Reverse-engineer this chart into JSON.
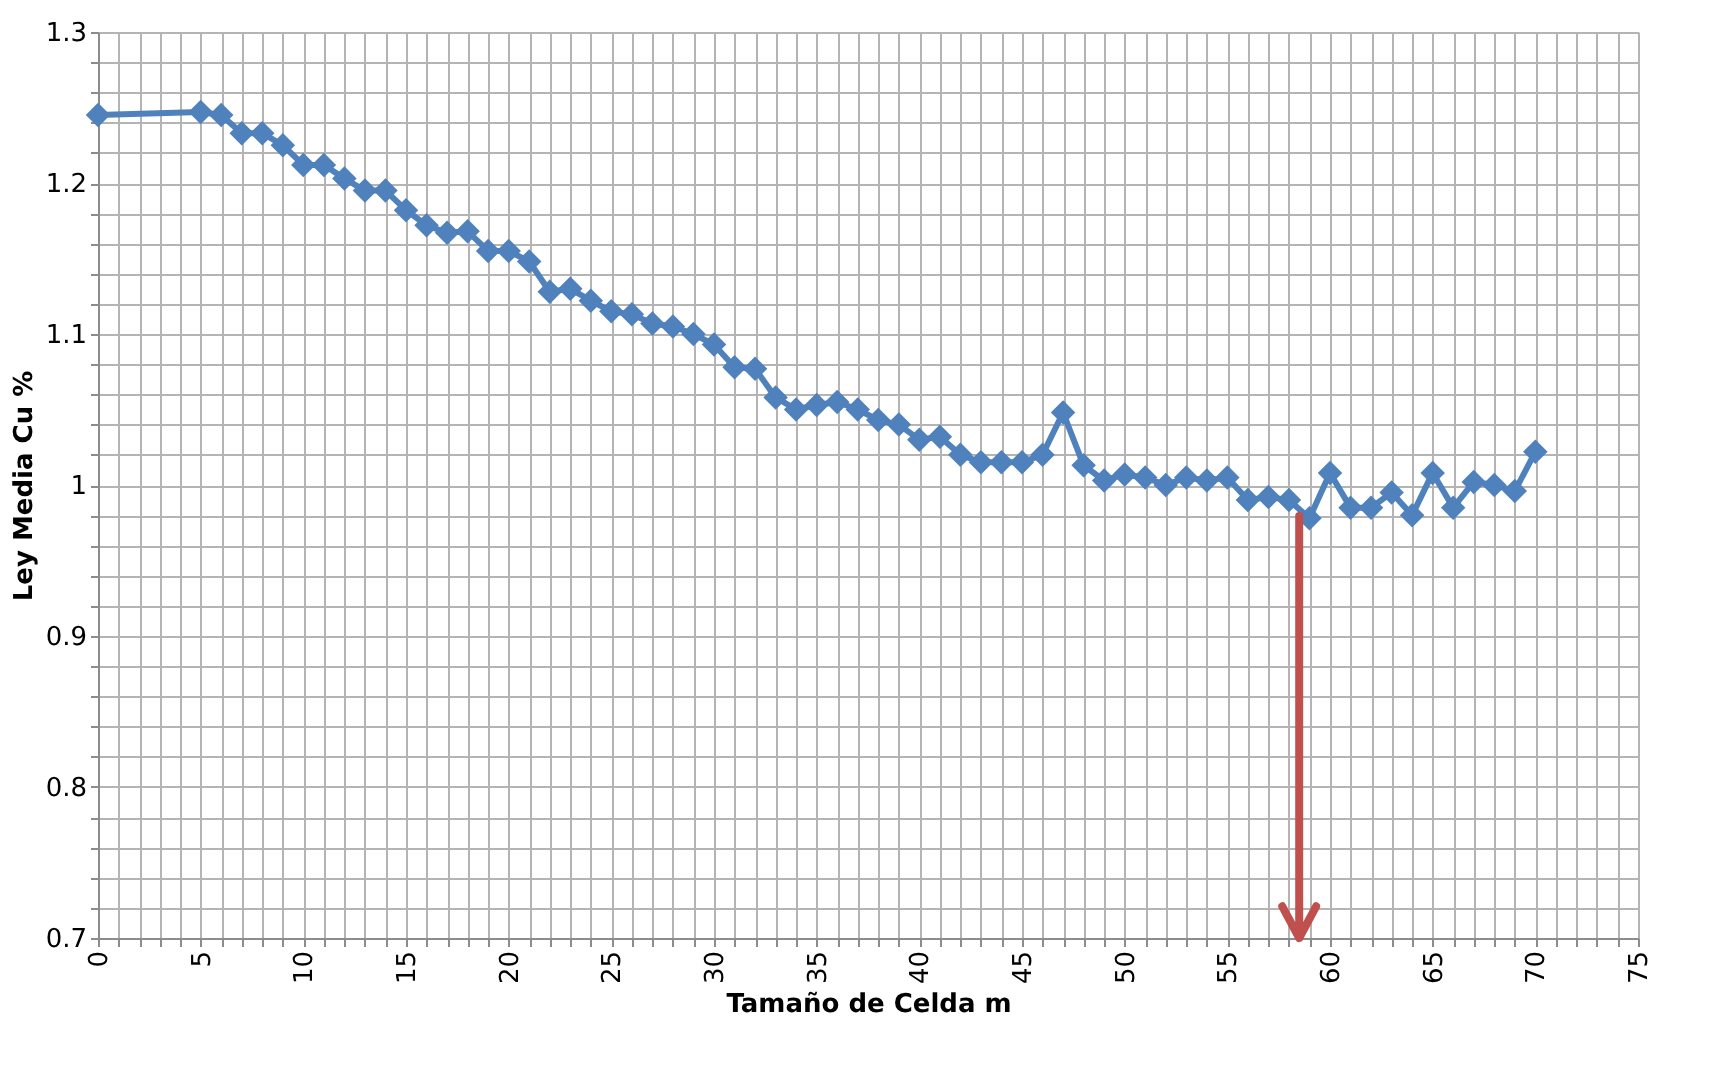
{
  "chart_data": {
    "type": "line",
    "xlabel": "Tamaño de Celda m",
    "ylabel": "Ley Media Cu %",
    "x": [
      0,
      5,
      6,
      7,
      8,
      9,
      10,
      11,
      12,
      13,
      14,
      15,
      16,
      17,
      18,
      19,
      20,
      21,
      22,
      23,
      24,
      25,
      26,
      27,
      28,
      29,
      30,
      31,
      32,
      33,
      34,
      35,
      36,
      37,
      38,
      39,
      40,
      41,
      42,
      43,
      44,
      45,
      46,
      47,
      48,
      49,
      50,
      51,
      52,
      53,
      54,
      55,
      56,
      57,
      58,
      59,
      60,
      61,
      62,
      63,
      64,
      65,
      66,
      67,
      68,
      69,
      70
    ],
    "series": [
      {
        "color": "#4f81bd",
        "values": [
          1.245,
          1.247,
          1.245,
          1.233,
          1.233,
          1.225,
          1.212,
          1.212,
          1.203,
          1.195,
          1.195,
          1.182,
          1.172,
          1.167,
          1.168,
          1.155,
          1.155,
          1.148,
          1.128,
          1.13,
          1.122,
          1.115,
          1.113,
          1.107,
          1.105,
          1.1,
          1.093,
          1.078,
          1.077,
          1.058,
          1.05,
          1.053,
          1.055,
          1.05,
          1.043,
          1.04,
          1.03,
          1.032,
          1.02,
          1.015,
          1.015,
          1.015,
          1.02,
          1.048,
          1.013,
          1.003,
          1.007,
          1.005,
          1.0,
          1.005,
          1.003,
          1.005,
          0.99,
          0.992,
          0.99,
          0.978,
          1.008,
          0.985,
          0.985,
          0.995,
          0.98,
          1.008,
          0.985,
          1.002,
          1.0,
          0.996,
          1.022
        ]
      }
    ],
    "marker": "diamond",
    "line_style": "solid",
    "grid": true,
    "xlim": [
      0,
      75
    ],
    "ylim": [
      0.7,
      1.3
    ],
    "xticks": [
      0,
      {
        "value": 1,
        "label": null
      },
      {
        "value": 2,
        "label": null
      },
      {
        "value": 3,
        "label": null
      },
      {
        "value": 4,
        "label": null
      },
      5,
      {
        "value": 6,
        "label": null
      },
      {
        "value": 7,
        "label": null
      },
      {
        "value": 8,
        "label": null
      },
      {
        "value": 9,
        "label": null
      },
      10,
      {
        "value": 11,
        "label": null
      },
      {
        "value": 12,
        "label": null
      },
      {
        "value": 13,
        "label": null
      },
      {
        "value": 14,
        "label": null
      },
      15,
      {
        "value": 16,
        "label": null
      },
      {
        "value": 17,
        "label": null
      },
      {
        "value": 18,
        "label": null
      },
      {
        "value": 19,
        "label": null
      },
      20,
      {
        "value": 21,
        "label": null
      },
      {
        "value": 22,
        "label": null
      },
      {
        "value": 23,
        "label": null
      },
      {
        "value": 24,
        "label": null
      },
      25,
      {
        "value": 26,
        "label": null
      },
      {
        "value": 27,
        "label": null
      },
      {
        "value": 28,
        "label": null
      },
      {
        "value": 29,
        "label": null
      },
      30,
      {
        "value": 31,
        "label": null
      },
      {
        "value": 32,
        "label": null
      },
      {
        "value": 33,
        "label": null
      },
      {
        "value": 34,
        "label": null
      },
      35,
      {
        "value": 36,
        "label": null
      },
      {
        "value": 37,
        "label": null
      },
      {
        "value": 38,
        "label": null
      },
      {
        "value": 39,
        "label": null
      },
      40,
      {
        "value": 41,
        "label": null
      },
      {
        "value": 42,
        "label": null
      },
      {
        "value": 43,
        "label": null
      },
      {
        "value": 44,
        "label": null
      },
      45,
      {
        "value": 46,
        "label": null
      },
      {
        "value": 47,
        "label": null
      },
      {
        "value": 48,
        "label": null
      },
      {
        "value": 49,
        "label": null
      },
      50,
      {
        "value": 51,
        "label": null
      },
      {
        "value": 52,
        "label": null
      },
      {
        "value": 53,
        "label": null
      },
      {
        "value": 54,
        "label": null
      },
      55,
      {
        "value": 56,
        "label": null
      },
      {
        "value": 57,
        "label": null
      },
      {
        "value": 58,
        "label": null
      },
      {
        "value": 59,
        "label": null
      },
      60,
      {
        "value": 61,
        "label": null
      },
      {
        "value": 62,
        "label": null
      },
      {
        "value": 63,
        "label": null
      },
      {
        "value": 64,
        "label": null
      },
      65,
      {
        "value": 66,
        "label": null
      },
      {
        "value": 67,
        "label": null
      },
      {
        "value": 68,
        "label": null
      },
      {
        "value": 69,
        "label": null
      },
      70,
      {
        "value": 71,
        "label": null
      },
      {
        "value": 72,
        "label": null
      },
      {
        "value": 73,
        "label": null
      },
      {
        "value": 74,
        "label": null
      },
      75
    ],
    "yticks": [
      0.7,
      {
        "value": 0.72,
        "label": null
      },
      {
        "value": 0.74,
        "label": null
      },
      {
        "value": 0.76,
        "label": null
      },
      {
        "value": 0.78,
        "label": null
      },
      0.8,
      {
        "value": 0.82,
        "label": null
      },
      {
        "value": 0.84,
        "label": null
      },
      {
        "value": 0.86,
        "label": null
      },
      {
        "value": 0.88,
        "label": null
      },
      0.9,
      {
        "value": 0.92,
        "label": null
      },
      {
        "value": 0.94,
        "label": null
      },
      {
        "value": 0.96,
        "label": null
      },
      {
        "value": 0.98,
        "label": null
      },
      1,
      {
        "value": 1.02,
        "label": null
      },
      {
        "value": 1.04,
        "label": null
      },
      {
        "value": 1.06,
        "label": null
      },
      {
        "value": 1.08,
        "label": null
      },
      1.1,
      {
        "value": 1.12,
        "label": null
      },
      {
        "value": 1.14,
        "label": null
      },
      {
        "value": 1.16,
        "label": null
      },
      {
        "value": 1.18,
        "label": null
      },
      1.2,
      {
        "value": 1.22,
        "label": null
      },
      {
        "value": 1.24,
        "label": null
      },
      {
        "value": 1.26,
        "label": null
      },
      {
        "value": 1.28,
        "label": null
      },
      1.3
    ],
    "ref_lines": [
      {
        "axis": "x",
        "value": 58.5,
        "color": "#c0504d"
      }
    ]
  }
}
